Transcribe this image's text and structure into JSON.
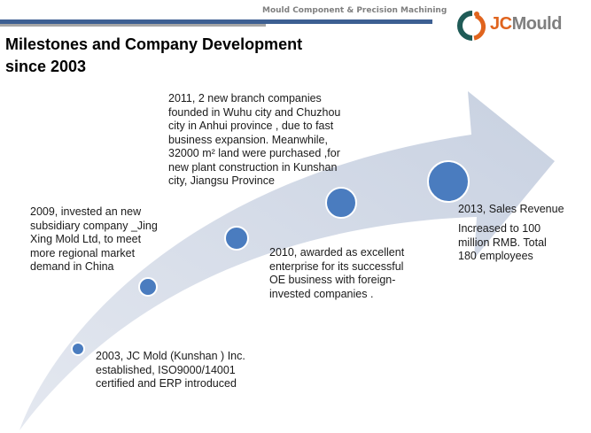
{
  "header": {
    "tagline": "Mould Component & Precision Machining",
    "title_line1": "Milestones and Company  Development",
    "title_line2": "since 2003",
    "logo_jc": "JC",
    "logo_mould": "Mould"
  },
  "colors": {
    "accent_blue": "#3d5f92",
    "dot": "#4a7cbf",
    "arrow": "#cdd5e3",
    "logo_orange": "#e0641e",
    "logo_teal": "#1f5b57"
  },
  "milestones": [
    {
      "text": "2003,   JC Mold (Kunshan ) Inc.\nestablished, ISO9000/14001\ncertified and ERP introduced"
    },
    {
      "text": "2009,  invested  an new\nsubsidiary company _Jing\nXing Mold Ltd, to meet\nmore regional market\ndemand in China"
    },
    {
      "text": "2010,  awarded as excellent\nenterprise  for its successful\nOE business with  foreign-\ninvested companies ."
    },
    {
      "text": "2011,  2 new branch companies\nfounded in  Wuhu city and Chuzhou\ncity in  Anhui province , due to fast\nbusiness expansion. Meanwhile,\n32000  m² land were purchased ,for\nnew plant construction in Kunshan\ncity, Jiangsu  Province"
    },
    {
      "heading": "2013,  Sales Revenue",
      "text": "Increased to 100\nmillion RMB. Total\n180  employees"
    }
  ]
}
